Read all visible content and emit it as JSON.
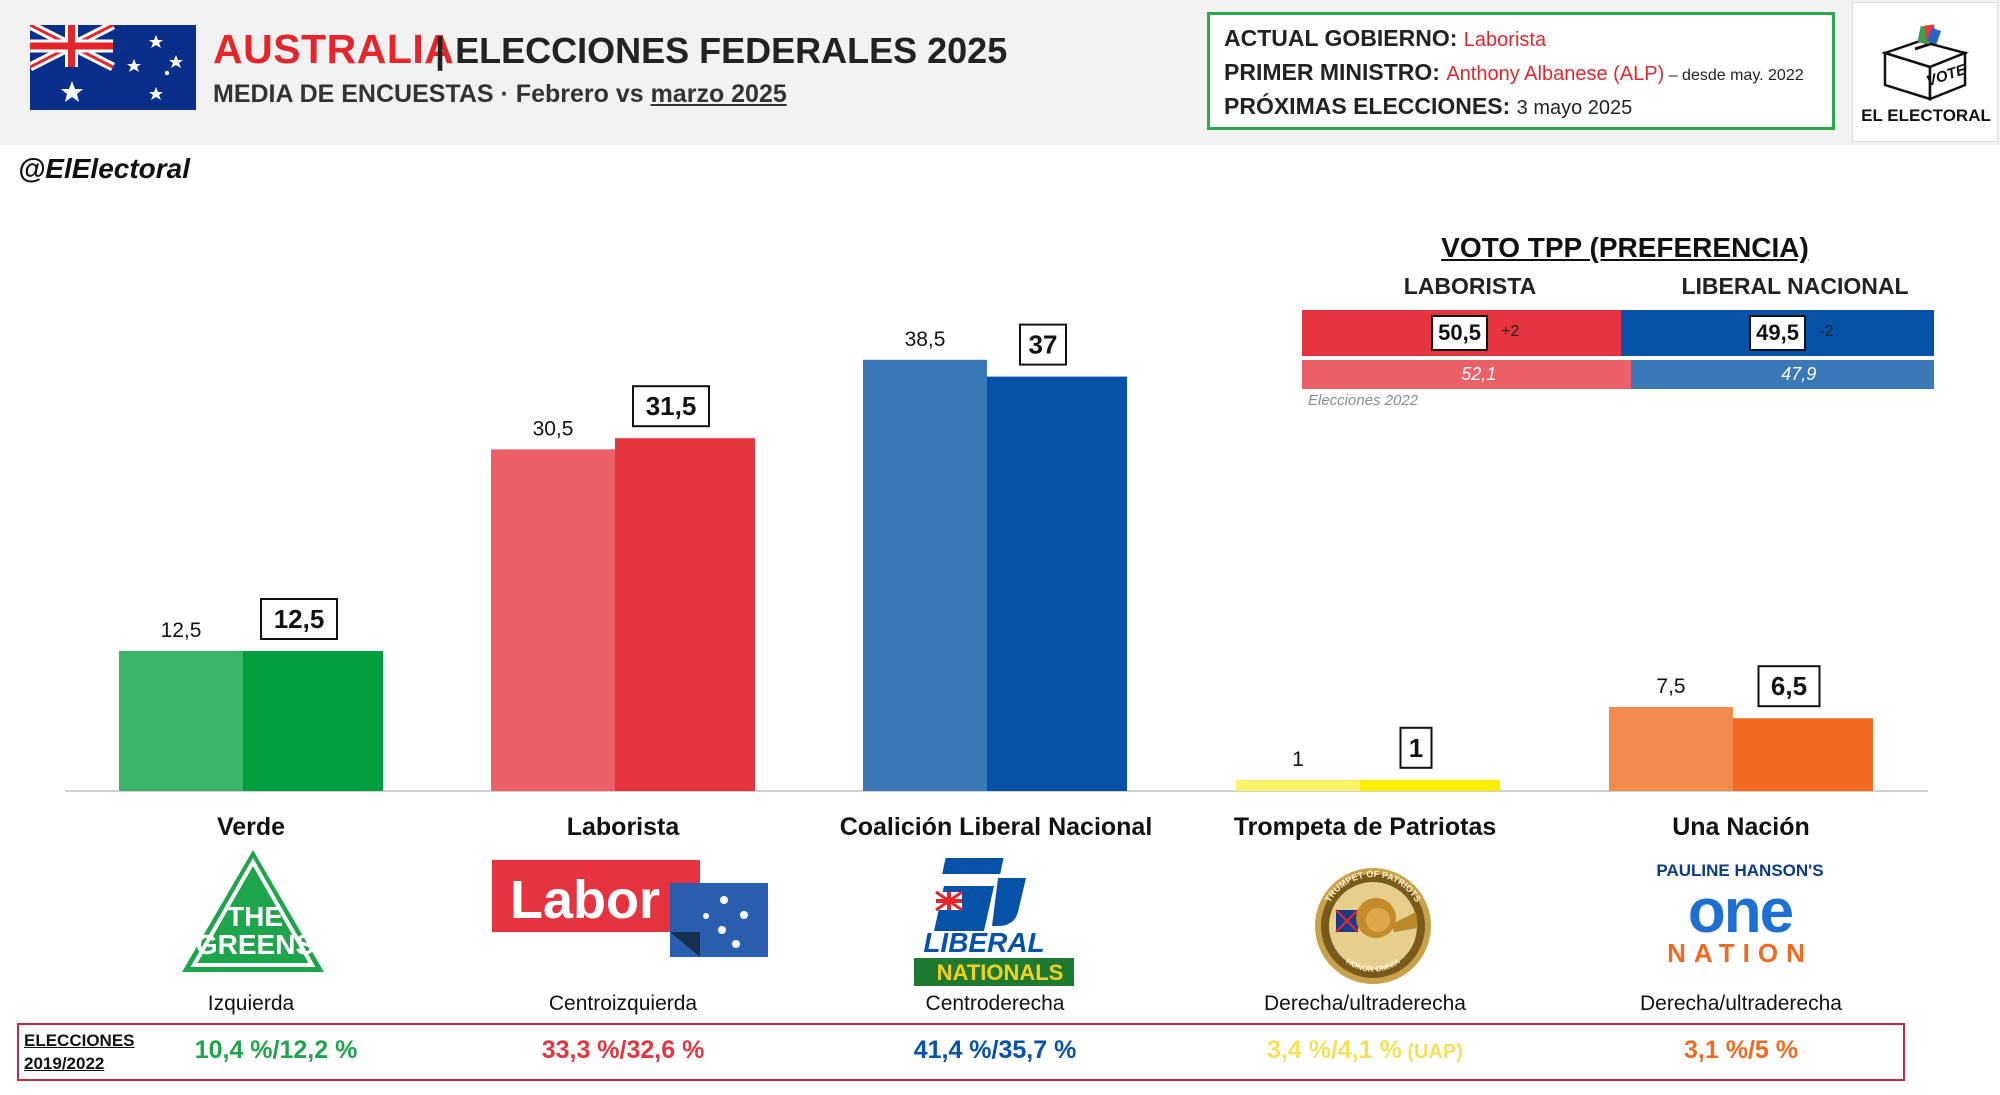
{
  "header": {
    "title_country": "AUSTRALIA",
    "title_rest": "| ELECCIONES FEDERALES 2025",
    "subtitle_main": "MEDIA DE ENCUESTAS · ",
    "subtitle_small": "Febrero vs ",
    "subtitle_underlined": "marzo 2025"
  },
  "info": {
    "gov_label": "ACTUAL GOBIERNO:",
    "gov_value": "Laborista",
    "pm_label": "PRIMER MINISTRO:",
    "pm_value": "Anthony Albanese (ALP)",
    "pm_since": " – desde may. 2022",
    "next_label": "PRÓXIMAS ELECCIONES:",
    "next_value": "3 mayo 2025"
  },
  "logo": {
    "ballot_text": "VOTE",
    "brand": "EL ELECTORAL"
  },
  "handle": "@ElElectoral",
  "colors": {
    "green_light": "#3ab467",
    "green_dark": "#009e3d",
    "red_light": "#eb5f67",
    "red_dark": "#e5343f",
    "blue_light": "#3a78b8",
    "blue_dark": "#0652a8",
    "yellow_light": "#f7f26a",
    "yellow_dark": "#f9ee00",
    "orange_light": "#f38b4e",
    "orange_dark": "#f26a21"
  },
  "chart_data": {
    "type": "bar",
    "categories": [
      "Verde",
      "Laborista",
      "Coalición Liberal Nacional",
      "Trompeta de Patriotas",
      "Una Nación"
    ],
    "series": [
      {
        "name": "Febrero",
        "values": [
          12.5,
          30.5,
          38.5,
          1,
          7.5
        ]
      },
      {
        "name": "marzo 2025",
        "values": [
          12.5,
          31.5,
          37,
          1,
          6.5
        ]
      }
    ],
    "labels_feb": [
      "12,5",
      "30,5",
      "38,5",
      "1",
      "7,5"
    ],
    "labels_mar": [
      "12,5",
      "31,5",
      "37",
      "1",
      "6,5"
    ],
    "ylim": [
      0,
      40
    ]
  },
  "parties": [
    {
      "name": "Verde",
      "ideology": "Izquierda",
      "result": "10,4 %/12,2 %",
      "result_extra": "",
      "color": "#1ea44b",
      "icon": "greens-logo"
    },
    {
      "name": "Laborista",
      "ideology": "Centroizquierda",
      "result": "33,3 %/32,6 %",
      "result_extra": "",
      "color": "#e5343f",
      "icon": "labor-logo"
    },
    {
      "name": "Coalición Liberal Nacional",
      "ideology": "Centroderecha",
      "result": "41,4 %/35,7 %",
      "result_extra": "",
      "color": "#0652a8",
      "icon": "liberal-logo"
    },
    {
      "name": "Trompeta de Patriotas",
      "ideology": "Derecha/ultraderecha",
      "result": "3,4 %/4,1 %",
      "result_extra": " (UAP)",
      "color": "#f5e05a",
      "icon": "trumpet-patriots-logo"
    },
    {
      "name": "Una Nación",
      "ideology": "Derecha/ultraderecha",
      "result": "3,1 %/5 %",
      "result_extra": "",
      "color": "#f26a21",
      "icon": "one-nation-logo"
    }
  ],
  "logos": {
    "greens_line1": "THE",
    "greens_line2": "GREENS",
    "labor": "Labor",
    "liberal": "LIBERAL",
    "nationals": "NATIONALS",
    "onenation_top": "PAULINE HANSON'S",
    "onenation_mid": "one",
    "onenation_bottom": "NATION",
    "trumpet_ring_top": "TRUMPET OF PATRIOTS",
    "trumpet_ring_bottom": "HONOR OMNIA"
  },
  "tpp": {
    "title": "VOTO TPP (PREFERENCIA)",
    "left_label": "LABORISTA",
    "right_label": "LIBERAL NACIONAL",
    "left_value": "50,5",
    "left_delta": "+2",
    "right_value": "49,5",
    "right_delta": "-2",
    "left_share": 50.5,
    "left_2022": "52,1",
    "right_2022": "47,9",
    "left_2022_share": 52.1,
    "note": "Elecciones 2022"
  },
  "results": {
    "label_line1": "ELECCIONES",
    "label_line2": "2019/2022"
  }
}
